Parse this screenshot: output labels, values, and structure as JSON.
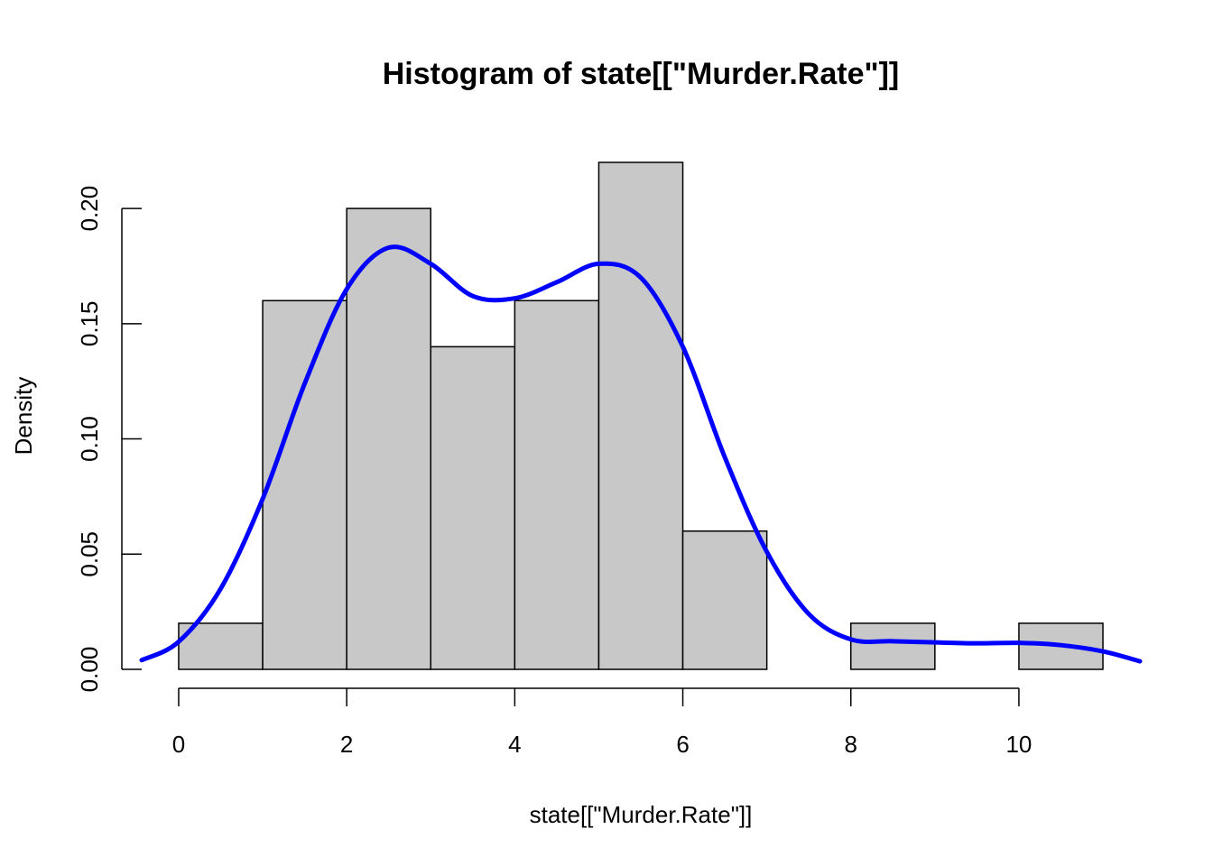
{
  "chart_data": {
    "type": "bar",
    "title": "Histogram of state[[\"Murder.Rate\"]]",
    "xlabel": "state[[\"Murder.Rate\"]]",
    "ylabel": "Density",
    "xlim": [
      -0.44,
      11.44
    ],
    "ylim": [
      0,
      0.22
    ],
    "bins": [
      {
        "x0": 0,
        "x1": 1,
        "density": 0.02
      },
      {
        "x0": 1,
        "x1": 2,
        "density": 0.16
      },
      {
        "x0": 2,
        "x1": 3,
        "density": 0.2
      },
      {
        "x0": 3,
        "x1": 4,
        "density": 0.14
      },
      {
        "x0": 4,
        "x1": 5,
        "density": 0.16
      },
      {
        "x0": 5,
        "x1": 6,
        "density": 0.22
      },
      {
        "x0": 6,
        "x1": 7,
        "density": 0.06
      },
      {
        "x0": 7,
        "x1": 8,
        "density": 0.0
      },
      {
        "x0": 8,
        "x1": 9,
        "density": 0.02
      },
      {
        "x0": 9,
        "x1": 10,
        "density": 0.0
      },
      {
        "x0": 10,
        "x1": 11,
        "density": 0.02
      }
    ],
    "density_curve": {
      "color": "#0000ff",
      "x": [
        -0.44,
        0,
        0.5,
        1,
        1.5,
        2,
        2.5,
        3,
        3.5,
        4,
        4.5,
        5,
        5.5,
        6,
        6.5,
        7,
        7.5,
        8,
        8.5,
        9,
        9.5,
        10,
        10.5,
        11,
        11.44
      ],
      "y": [
        0.004,
        0.012,
        0.035,
        0.074,
        0.124,
        0.165,
        0.183,
        0.176,
        0.162,
        0.161,
        0.168,
        0.176,
        0.17,
        0.14,
        0.092,
        0.051,
        0.024,
        0.013,
        0.0122,
        0.0117,
        0.0113,
        0.0115,
        0.0105,
        0.0078,
        0.0035
      ]
    },
    "bar_fill": "#c8c8c8",
    "x_ticks": [
      0,
      2,
      4,
      6,
      8,
      10
    ],
    "y_ticks": [
      "0.00",
      "0.05",
      "0.10",
      "0.15",
      "0.20"
    ],
    "grid": false
  }
}
